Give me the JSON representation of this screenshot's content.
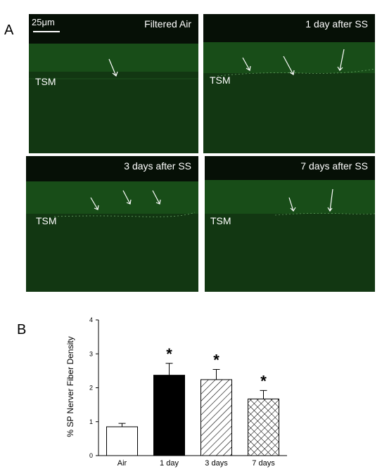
{
  "panel_a_label": "A",
  "panel_b_label": "B",
  "scale_bar": "25μm",
  "images": [
    {
      "title": "Filtered Air",
      "tissue_label": "TSM",
      "arrows": 1
    },
    {
      "title": "1 day after SS",
      "tissue_label": "TSM",
      "arrows": 3
    },
    {
      "title": "3 days after SS",
      "tissue_label": "TSM",
      "arrows": 3
    },
    {
      "title": "7 days after SS",
      "tissue_label": "TSM",
      "arrows": 2
    }
  ],
  "colors": {
    "fluorescence_bg": "#0f2a0f",
    "fluorescence_band": "#1f5a1f",
    "top_dark": "#061006"
  },
  "chart_data": {
    "type": "bar",
    "categories": [
      "Air",
      "1 day",
      "3 days",
      "7 days"
    ],
    "values": [
      0.85,
      2.37,
      2.24,
      1.67
    ],
    "errors": [
      0.1,
      0.35,
      0.3,
      0.25
    ],
    "significance": [
      "",
      "*",
      "*",
      "*"
    ],
    "fills": [
      "white",
      "black",
      "diagonal-hatch",
      "crosshatch"
    ],
    "title": "",
    "xlabel": "",
    "ylabel": "% SP Nerver Fiber Density",
    "ylim": [
      0,
      4
    ],
    "yticks": [
      "0",
      "1",
      "2",
      "3",
      "4"
    ],
    "grid": false
  }
}
